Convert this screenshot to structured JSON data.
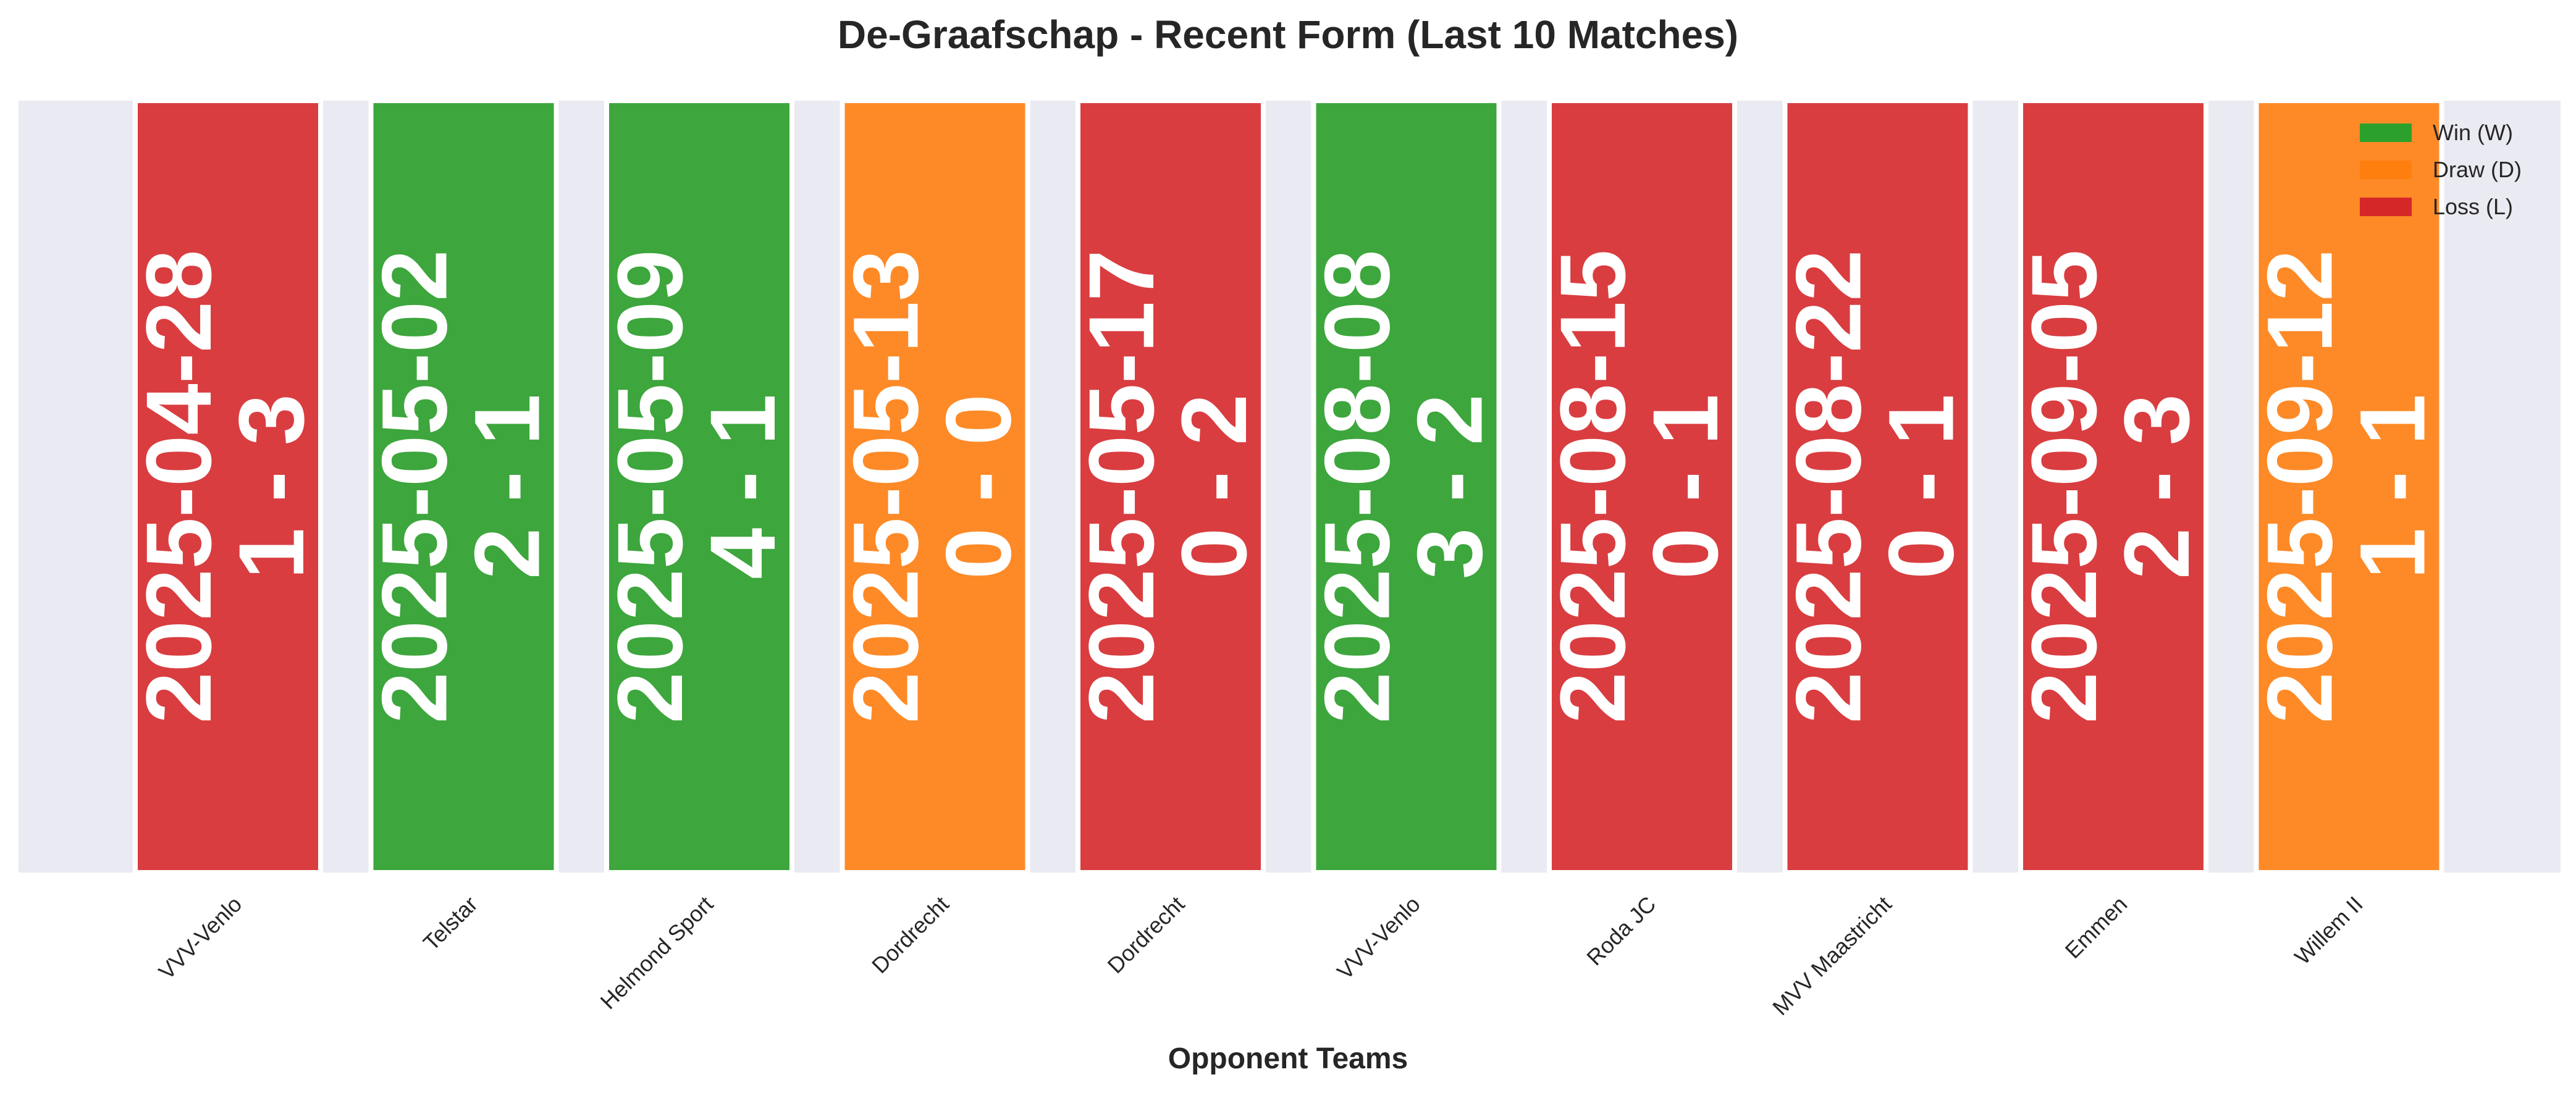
{
  "chart_data": {
    "type": "bar",
    "title": "De-Graafschap - Recent Form (Last 10 Matches)",
    "xlabel": "Opponent Teams",
    "ylabel": "",
    "ylim": [
      0,
      1
    ],
    "grid": false,
    "legend_position": "top-right",
    "categories": [
      "VVV-Venlo",
      "Telstar",
      "Helmond Sport",
      "Dordrecht",
      "Dordrecht",
      "VVV-Venlo",
      "Roda JC",
      "MVV Maastricht",
      "Emmen",
      "Willem II"
    ],
    "values": [
      1,
      1,
      1,
      1,
      1,
      1,
      1,
      1,
      1,
      1
    ],
    "results": [
      "L",
      "W",
      "W",
      "D",
      "L",
      "W",
      "L",
      "L",
      "L",
      "D"
    ],
    "dates": [
      "2025-04-28",
      "2025-05-02",
      "2025-05-09",
      "2025-05-13",
      "2025-05-17",
      "2025-08-08",
      "2025-08-15",
      "2025-08-22",
      "2025-09-05",
      "2025-09-12"
    ],
    "scores": [
      "1 - 3",
      "2 - 1",
      "4 - 1",
      "0 - 0",
      "0 - 2",
      "3 - 2",
      "0 - 1",
      "0 - 1",
      "2 - 3",
      "1 - 1"
    ],
    "legend": [
      {
        "key": "W",
        "label": "Win (W)",
        "color": "#2ca02c"
      },
      {
        "key": "D",
        "label": "Draw (D)",
        "color": "#ff7f0e"
      },
      {
        "key": "L",
        "label": "Loss (L)",
        "color": "#d62728"
      }
    ],
    "colors": {
      "W": "#3da63d",
      "D": "#fd8a27",
      "L": "#d93d40",
      "background": "#eaeaf2"
    }
  }
}
